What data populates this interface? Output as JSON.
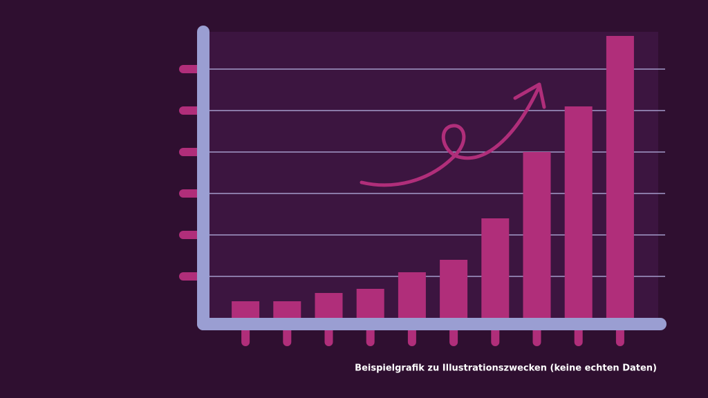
{
  "chart_data": {
    "type": "bar",
    "caption": "Beispielgrafik zu Illustrationszwecken (keine echten Daten)",
    "categories": [
      null,
      null,
      null,
      null,
      null,
      null,
      null,
      null,
      null,
      null
    ],
    "values": [
      0.4,
      0.4,
      0.6,
      0.7,
      1.1,
      1.4,
      2.4,
      4,
      5.1,
      6.8
    ],
    "color": "#b02e7a",
    "ylim": [
      0,
      6.9
    ],
    "yticks": [
      1,
      2,
      3,
      4,
      5,
      6
    ],
    "grid": true
  }
}
